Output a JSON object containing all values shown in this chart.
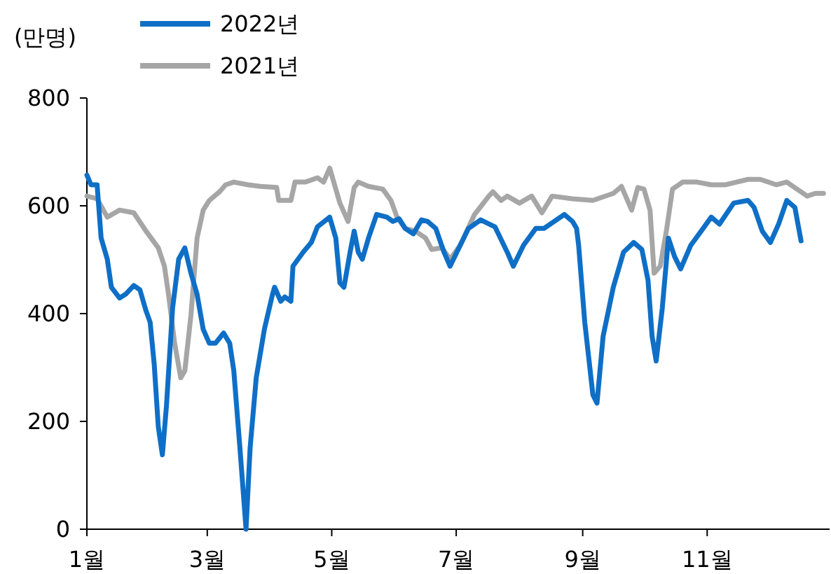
{
  "chart_data": {
    "type": "line",
    "ylabel": "(만명)",
    "legend": "top",
    "marker": "none",
    "line_style": "solid",
    "grid": false,
    "xlim": [
      "--01-01",
      "--12-31"
    ],
    "ylim": [
      0,
      800
    ],
    "yticks": [
      0,
      200,
      400,
      600,
      800
    ],
    "xticks": [
      {
        "value": "--01-01",
        "label": "1월"
      },
      {
        "value": "--03-01",
        "label": "3월"
      },
      {
        "value": "--05-01",
        "label": "5월"
      },
      {
        "value": "--07-01",
        "label": "7월"
      },
      {
        "value": "--09-01",
        "label": "9월"
      },
      {
        "value": "--11-01",
        "label": "11월"
      }
    ],
    "series": [
      {
        "name": "2022년",
        "color": "#0f6fc6",
        "x": [
          "--01-01",
          "--01-03",
          "--01-06",
          "--01-08",
          "--01-11",
          "--01-13",
          "--01-17",
          "--01-20",
          "--01-24",
          "--01-27",
          "--01-30",
          "--02-01",
          "--02-03",
          "--02-05",
          "--02-07",
          "--02-09",
          "--02-12",
          "--02-15",
          "--02-18",
          "--02-21",
          "--02-24",
          "--02-27",
          "--03-02",
          "--03-05",
          "--03-09",
          "--03-12",
          "--03-14",
          "--03-17",
          "--03-20",
          "--03-22",
          "--03-25",
          "--03-29",
          "--04-02",
          "--04-03",
          "--04-06",
          "--04-08",
          "--04-11",
          "--04-12",
          "--04-17",
          "--04-21",
          "--04-24",
          "--04-30",
          "--05-03",
          "--05-05",
          "--05-07",
          "--05-10",
          "--05-12",
          "--05-14",
          "--05-16",
          "--05-19",
          "--05-23",
          "--05-28",
          "--05-31",
          "--06-03",
          "--06-06",
          "--06-10",
          "--06-12",
          "--06-14",
          "--06-17",
          "--06-21",
          "--06-25",
          "--06-28",
          "--07-03",
          "--07-07",
          "--07-13",
          "--07-20",
          "--07-26",
          "--07-29",
          "--08-03",
          "--08-09",
          "--08-13",
          "--08-18",
          "--08-23",
          "--08-27",
          "--08-29",
          "--08-30",
          "--09-02",
          "--09-06",
          "--09-08",
          "--09-11",
          "--09-16",
          "--09-21",
          "--09-26",
          "--09-30",
          "--10-03",
          "--10-05",
          "--10-07",
          "--10-10",
          "--10-13",
          "--10-16",
          "--10-19",
          "--10-24",
          "--10-30",
          "--11-03",
          "--11-07",
          "--11-14",
          "--11-21",
          "--11-24",
          "--11-28",
          "--12-02",
          "--12-06",
          "--12-10",
          "--12-14",
          "--12-17"
        ],
        "values": [
          657,
          639,
          639,
          540,
          501,
          449,
          429,
          436,
          452,
          444,
          405,
          384,
          306,
          190,
          138,
          229,
          410,
          501,
          522,
          475,
          436,
          371,
          345,
          345,
          364,
          345,
          294,
          151,
          0,
          151,
          281,
          371,
          436,
          449,
          423,
          431,
          423,
          488,
          514,
          532,
          561,
          579,
          540,
          457,
          449,
          514,
          553,
          514,
          501,
          540,
          584,
          579,
          571,
          576,
          558,
          548,
          561,
          574,
          571,
          558,
          514,
          488,
          527,
          558,
          574,
          561,
          514,
          488,
          527,
          558,
          558,
          571,
          584,
          571,
          558,
          527,
          384,
          249,
          234,
          358,
          449,
          514,
          532,
          519,
          462,
          358,
          312,
          410,
          540,
          506,
          483,
          527,
          558,
          579,
          566,
          605,
          610,
          597,
          553,
          532,
          566,
          610,
          597,
          535
        ]
      },
      {
        "name": "2021년",
        "color": "#a6a6a6",
        "x": [
          "--01-01",
          "--01-06",
          "--01-11",
          "--01-17",
          "--01-24",
          "--01-30",
          "--02-05",
          "--02-08",
          "--02-10",
          "--02-13",
          "--02-16",
          "--02-18",
          "--02-21",
          "--02-24",
          "--02-27",
          "--03-02",
          "--03-07",
          "--03-10",
          "--03-14",
          "--03-21",
          "--03-27",
          "--04-04",
          "--04-05",
          "--04-11",
          "--04-13",
          "--04-18",
          "--04-24",
          "--04-27",
          "--04-30",
          "--05-05",
          "--05-09",
          "--05-12",
          "--05-14",
          "--05-19",
          "--05-26",
          "--05-30",
          "--06-02",
          "--06-06",
          "--06-11",
          "--06-16",
          "--06-19",
          "--06-24",
          "--06-28",
          "--07-03",
          "--07-10",
          "--07-17",
          "--07-19",
          "--07-23",
          "--07-26",
          "--08-01",
          "--08-07",
          "--08-12",
          "--08-17",
          "--08-27",
          "--09-06",
          "--09-16",
          "--09-20",
          "--09-25",
          "--09-28",
          "--10-01",
          "--10-04",
          "--10-06",
          "--10-09",
          "--10-12",
          "--10-15",
          "--10-20",
          "--10-27",
          "--11-03",
          "--11-10",
          "--11-21",
          "--11-27",
          "--12-05",
          "--12-10",
          "--12-20",
          "--12-24",
          "--12-28"
        ],
        "values": [
          618,
          613,
          579,
          592,
          587,
          553,
          522,
          488,
          436,
          345,
          281,
          294,
          397,
          540,
          592,
          610,
          626,
          639,
          644,
          639,
          636,
          634,
          610,
          610,
          644,
          644,
          652,
          644,
          670,
          605,
          571,
          634,
          644,
          636,
          631,
          610,
          579,
          558,
          553,
          540,
          519,
          522,
          501,
          527,
          584,
          618,
          626,
          610,
          618,
          605,
          618,
          587,
          618,
          613,
          610,
          623,
          636,
          592,
          634,
          631,
          592,
          475,
          488,
          553,
          631,
          644,
          644,
          639,
          639,
          649,
          649,
          639,
          644,
          618,
          623,
          623
        ]
      }
    ]
  }
}
